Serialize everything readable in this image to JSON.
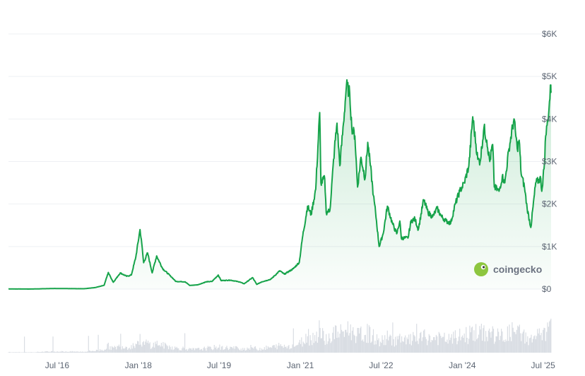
{
  "watermark": {
    "text": "coingecko",
    "icon": "gecko-logo-icon"
  },
  "colors": {
    "line": "#16a34a",
    "area_top": "#16a34a",
    "grid": "#eef0f3",
    "volume": "#d9dde3",
    "text": "#5b6472"
  },
  "chart_data": {
    "type": "area",
    "x_type": "date",
    "ylim": [
      0,
      6000
    ],
    "y_ticks": [
      "$0",
      "$1K",
      "$2K",
      "$3K",
      "$4K",
      "$5K",
      "$6K"
    ],
    "y_tick_values": [
      0,
      1000,
      2000,
      3000,
      4000,
      5000,
      6000
    ],
    "x_ticks": [
      "Jul '16",
      "Jan '18",
      "Jul '19",
      "Jan '21",
      "Jul '22",
      "Jan '24",
      "Jul '25"
    ],
    "x_tick_dates": [
      "2016-07-01",
      "2018-01-01",
      "2019-07-01",
      "2021-01-01",
      "2022-07-01",
      "2024-01-01",
      "2025-07-01"
    ],
    "x_range": [
      "2015-08-07",
      "2025-08-24"
    ],
    "grid": true,
    "series": [
      {
        "points": [
          [
            "2015-08-07",
            3
          ],
          [
            "2016-01-01",
            1
          ],
          [
            "2016-06-15",
            14
          ],
          [
            "2016-12-31",
            8
          ],
          [
            "2017-03-15",
            35
          ],
          [
            "2017-05-15",
            90
          ],
          [
            "2017-06-12",
            390
          ],
          [
            "2017-06-25",
            300
          ],
          [
            "2017-07-16",
            160
          ],
          [
            "2017-08-15",
            300
          ],
          [
            "2017-09-01",
            380
          ],
          [
            "2017-10-15",
            300
          ],
          [
            "2017-11-15",
            330
          ],
          [
            "2017-12-15",
            750
          ],
          [
            "2018-01-13",
            1400
          ],
          [
            "2018-01-25",
            1050
          ],
          [
            "2018-02-06",
            620
          ],
          [
            "2018-03-05",
            850
          ],
          [
            "2018-04-05",
            380
          ],
          [
            "2018-05-05",
            780
          ],
          [
            "2018-06-15",
            480
          ],
          [
            "2018-08-15",
            280
          ],
          [
            "2018-09-12",
            180
          ],
          [
            "2018-11-15",
            170
          ],
          [
            "2018-12-15",
            85
          ],
          [
            "2019-02-07",
            100
          ],
          [
            "2019-04-05",
            170
          ],
          [
            "2019-05-15",
            180
          ],
          [
            "2019-06-26",
            330
          ],
          [
            "2019-07-15",
            200
          ],
          [
            "2019-09-15",
            210
          ],
          [
            "2019-11-15",
            170
          ],
          [
            "2019-12-18",
            125
          ],
          [
            "2020-02-13",
            270
          ],
          [
            "2020-03-12",
            110
          ],
          [
            "2020-04-15",
            170
          ],
          [
            "2020-06-15",
            230
          ],
          [
            "2020-08-15",
            430
          ],
          [
            "2020-09-15",
            350
          ],
          [
            "2020-11-15",
            480
          ],
          [
            "2020-12-25",
            630
          ],
          [
            "2021-01-15",
            1200
          ],
          [
            "2021-02-19",
            1950
          ],
          [
            "2021-03-15",
            1750
          ],
          [
            "2021-04-15",
            2350
          ],
          [
            "2021-05-12",
            4150
          ],
          [
            "2021-05-20",
            2500
          ],
          [
            "2021-06-15",
            2600
          ],
          [
            "2021-06-25",
            1800
          ],
          [
            "2021-07-20",
            1850
          ],
          [
            "2021-08-20",
            3300
          ],
          [
            "2021-09-06",
            3900
          ],
          [
            "2021-09-25",
            2900
          ],
          [
            "2021-10-20",
            3900
          ],
          [
            "2021-11-09",
            4800
          ],
          [
            "2021-12-01",
            4600
          ],
          [
            "2021-12-15",
            3800
          ],
          [
            "2022-01-05",
            3600
          ],
          [
            "2022-01-23",
            2400
          ],
          [
            "2022-02-15",
            3100
          ],
          [
            "2022-03-15",
            2600
          ],
          [
            "2022-04-02",
            3450
          ],
          [
            "2022-04-20",
            2900
          ],
          [
            "2022-05-10",
            2200
          ],
          [
            "2022-05-25",
            1800
          ],
          [
            "2022-06-18",
            1000
          ],
          [
            "2022-07-15",
            1300
          ],
          [
            "2022-08-13",
            1950
          ],
          [
            "2022-09-15",
            1550
          ],
          [
            "2022-10-15",
            1300
          ],
          [
            "2022-11-05",
            1600
          ],
          [
            "2022-11-15",
            1200
          ],
          [
            "2022-12-30",
            1200
          ],
          [
            "2023-01-20",
            1600
          ],
          [
            "2023-02-15",
            1650
          ],
          [
            "2023-03-10",
            1400
          ],
          [
            "2023-04-15",
            2100
          ],
          [
            "2023-05-15",
            1800
          ],
          [
            "2023-06-15",
            1700
          ],
          [
            "2023-07-15",
            1900
          ],
          [
            "2023-08-15",
            1700
          ],
          [
            "2023-09-15",
            1600
          ],
          [
            "2023-10-15",
            1550
          ],
          [
            "2023-11-15",
            2000
          ],
          [
            "2023-12-15",
            2300
          ],
          [
            "2024-01-15",
            2500
          ],
          [
            "2024-02-15",
            2900
          ],
          [
            "2024-03-12",
            4050
          ],
          [
            "2024-04-15",
            3050
          ],
          [
            "2024-05-01",
            3000
          ],
          [
            "2024-05-27",
            3800
          ],
          [
            "2024-06-15",
            3500
          ],
          [
            "2024-07-05",
            3000
          ],
          [
            "2024-07-25",
            3400
          ],
          [
            "2024-08-05",
            2400
          ],
          [
            "2024-09-06",
            2300
          ],
          [
            "2024-09-28",
            2650
          ],
          [
            "2024-10-15",
            2500
          ],
          [
            "2024-11-12",
            3300
          ],
          [
            "2024-12-16",
            4000
          ],
          [
            "2025-01-07",
            3300
          ],
          [
            "2025-01-20",
            3500
          ],
          [
            "2025-02-03",
            2700
          ],
          [
            "2025-02-25",
            2400
          ],
          [
            "2025-03-15",
            1900
          ],
          [
            "2025-04-09",
            1450
          ],
          [
            "2025-05-12",
            2500
          ],
          [
            "2025-06-15",
            2600
          ],
          [
            "2025-06-22",
            2300
          ],
          [
            "2025-07-10",
            2950
          ],
          [
            "2025-07-18",
            3600
          ],
          [
            "2025-07-28",
            3850
          ],
          [
            "2025-08-10",
            4250
          ],
          [
            "2025-08-22",
            4800
          ],
          [
            "2025-08-24",
            4650
          ]
        ]
      }
    ]
  }
}
